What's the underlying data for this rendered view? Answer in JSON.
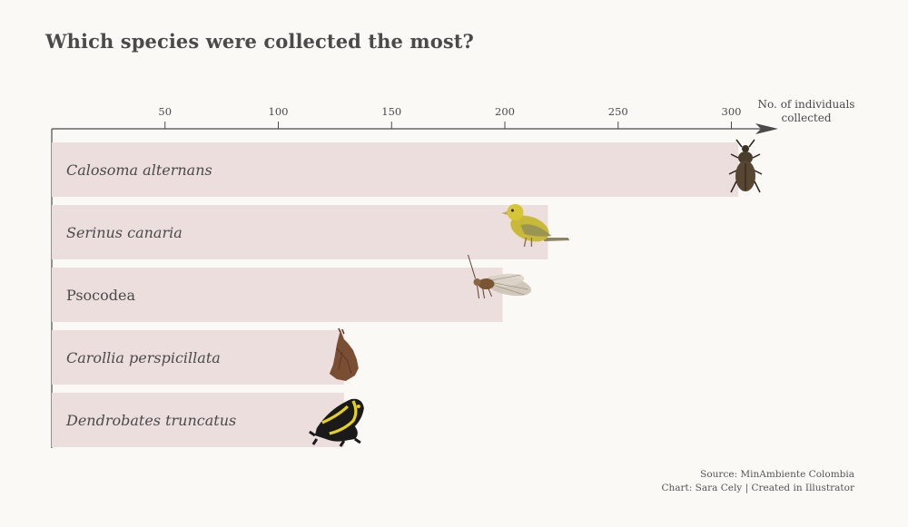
{
  "chart_data": {
    "type": "bar",
    "orientation": "horizontal",
    "title": "Which species were collected the most?",
    "categories": [
      "Calosoma alternans",
      "Serinus canaria",
      "Psocodea",
      "Carollia perspicillata",
      "Dendrobates truncatus"
    ],
    "italic": [
      true,
      true,
      false,
      true,
      true
    ],
    "values": [
      303,
      219,
      199,
      129,
      129
    ],
    "icons": [
      "beetle-icon",
      "canary-icon",
      "barklouse-icon",
      "bat-icon",
      "frog-icon"
    ],
    "xticks": [
      50,
      100,
      150,
      200,
      250,
      300
    ],
    "xlim": [
      0,
      320
    ],
    "xlabel": [
      "No. of individuals",
      "collected"
    ],
    "bar_color": "#ecdedd",
    "text_color": "#4a4a4a"
  },
  "footer": {
    "source": "Source: MinAmbiente Colombia",
    "credit": "Chart: Sara Cely | Created in Illustrator"
  }
}
